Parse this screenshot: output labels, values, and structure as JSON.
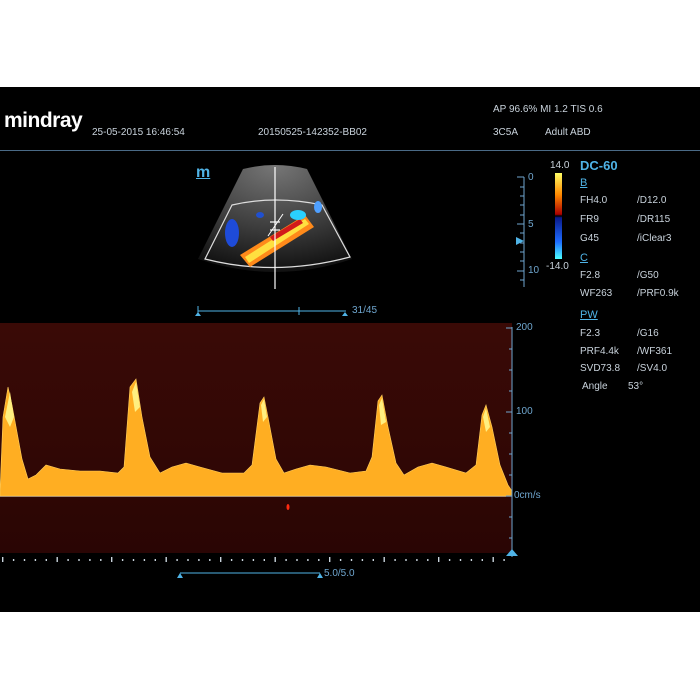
{
  "header": {
    "brand": "mindray",
    "datetime": "25-05-2015 16:46:54",
    "study_id": "20150525-142352-BB02",
    "acoustic": "AP 96.6%  MI 1.2 TIS 0.6",
    "probe": "3C5A",
    "exam": "Adult ABD"
  },
  "image": {
    "marker": "m",
    "depth_ticks": [
      "0",
      "5",
      "10"
    ],
    "frame_counter": "31/45"
  },
  "colorbar": {
    "max": "14.0",
    "min": "-14.0"
  },
  "params": {
    "preset": "DC-60",
    "b_mode": {
      "title": "B",
      "rows": [
        [
          "FH4.0",
          "/D12.0"
        ],
        [
          "FR9",
          "/DR115"
        ],
        [
          "G45",
          "/iClear3"
        ]
      ]
    },
    "c_mode": {
      "title": "C",
      "rows": [
        [
          "F2.8",
          "/G50"
        ],
        [
          "WF263",
          "/PRF0.9k"
        ]
      ]
    },
    "pw_mode": {
      "title": "PW",
      "rows": [
        [
          "F2.3",
          "/G16"
        ],
        [
          "PRF4.4k",
          "/WF361"
        ],
        [
          "SVD73.8",
          "/SV4.0"
        ],
        [
          "Angle",
          "53°"
        ]
      ]
    }
  },
  "spectrum": {
    "scale_labels": [
      "200",
      "100",
      "0cm/s"
    ],
    "sweep_counter": "5.0/5.0"
  },
  "colors": {
    "background": "#000000",
    "accent": "#4fb3e6",
    "text": "#c9d3dc",
    "doppler": "#ff9a10"
  }
}
